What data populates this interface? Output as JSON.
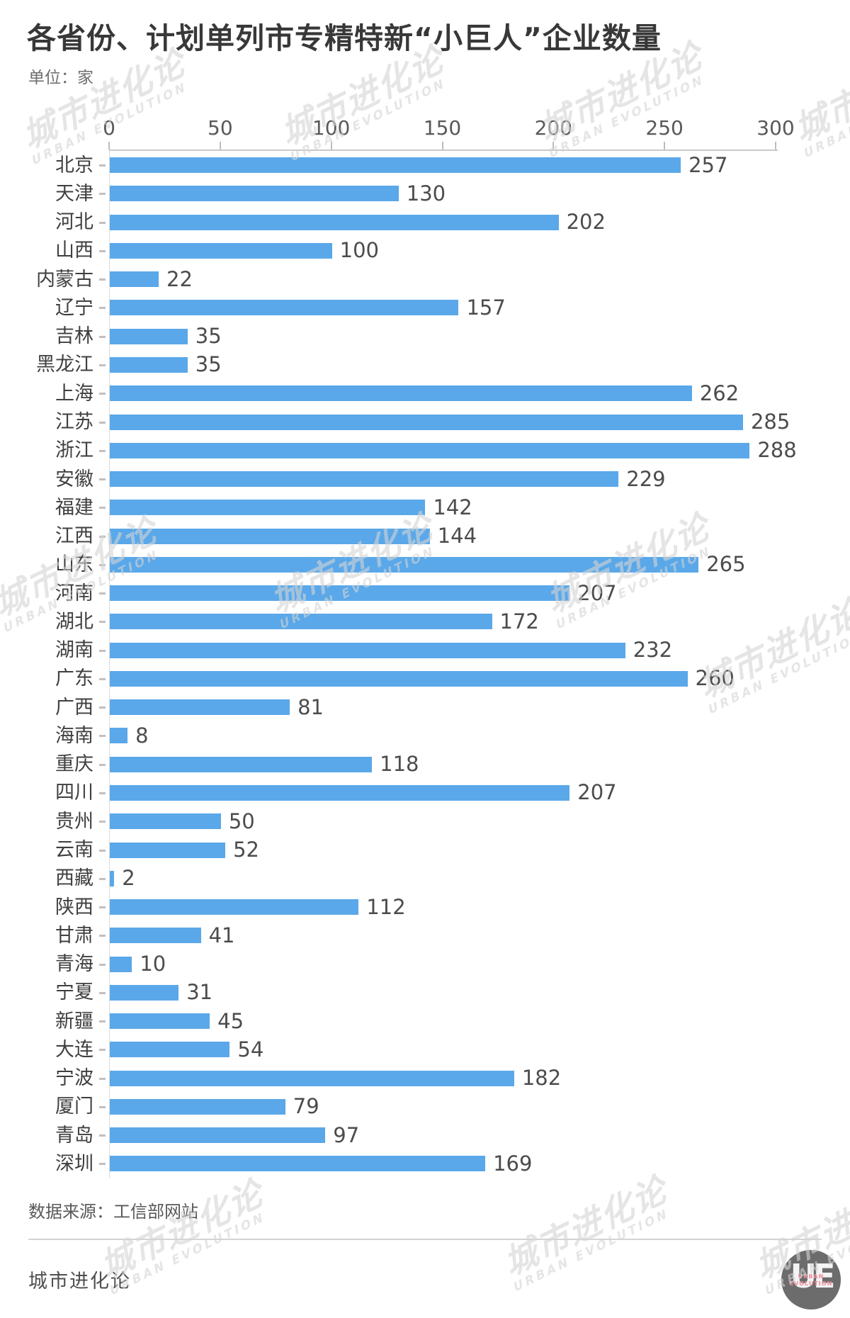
{
  "page": {
    "title": "各省份、计划单列市专精特新“小巨人”企业数量",
    "subtitle": "单位：家",
    "source": "数据来源：工信部网站"
  },
  "footer": {
    "brand": "城市进化论"
  },
  "logo": {
    "letters": "UE",
    "line1": "URBAN",
    "line2": "EVOLUTION"
  },
  "watermark": {
    "cn": "城市进化论",
    "en": "URBAN EVOLUTION"
  },
  "colors": {
    "bar": "#5aa8e9",
    "axis_line": "#c9c9c9",
    "watermark": "#d4d4d4",
    "logo_circle": "#6c6c6c",
    "logo_accent": "#ef8f9b"
  },
  "chart_data": {
    "type": "bar",
    "orientation": "horizontal",
    "title": "各省份、计划单列市专精特新“小巨人”企业数量",
    "unit_label": "单位：家",
    "source": "数据来源：工信部网站",
    "xlim": [
      0,
      300
    ],
    "x_ticks": [
      0,
      50,
      100,
      150,
      200,
      250,
      300
    ],
    "grid": false,
    "legend": false,
    "categories": [
      "北京",
      "天津",
      "河北",
      "山西",
      "内蒙古",
      "辽宁",
      "吉林",
      "黑龙江",
      "上海",
      "江苏",
      "浙江",
      "安徽",
      "福建",
      "江西",
      "山东",
      "河南",
      "湖北",
      "湖南",
      "广东",
      "广西",
      "海南",
      "重庆",
      "四川",
      "贵州",
      "云南",
      "西藏",
      "陕西",
      "甘肃",
      "青海",
      "宁夏",
      "新疆",
      "大连",
      "宁波",
      "厦门",
      "青岛",
      "深圳"
    ],
    "values": [
      257,
      130,
      202,
      100,
      22,
      157,
      35,
      35,
      262,
      285,
      288,
      229,
      142,
      144,
      265,
      207,
      172,
      232,
      260,
      81,
      8,
      118,
      207,
      50,
      52,
      2,
      112,
      41,
      10,
      31,
      45,
      54,
      182,
      79,
      97,
      169
    ]
  }
}
